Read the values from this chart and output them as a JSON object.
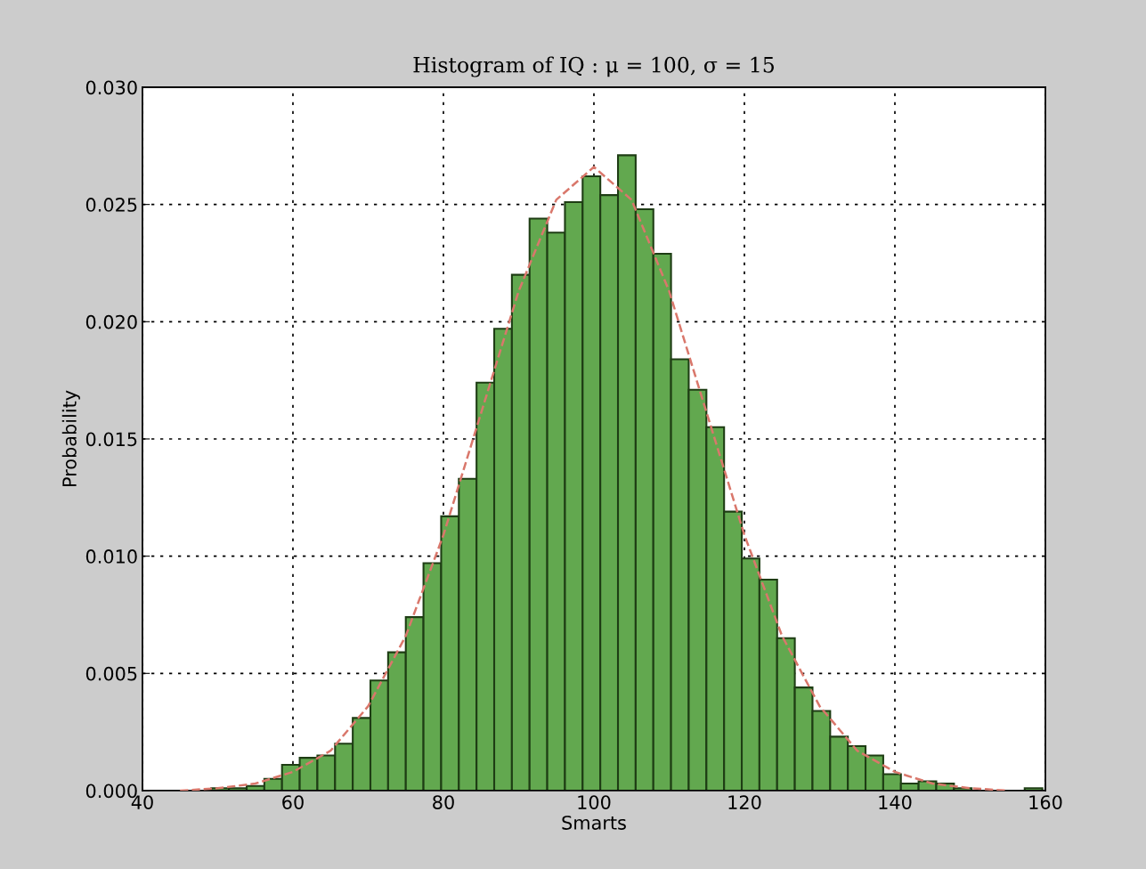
{
  "chart_data": {
    "type": "histogram",
    "title": "Histogram of IQ : μ = 100, σ = 15",
    "xlabel": "Smarts",
    "ylabel": "Probability",
    "series": [
      {
        "color": "#62a84f",
        "bins": [
          42.1,
          44.45,
          46.8,
          49.15,
          51.5,
          53.85,
          56.2,
          58.55,
          60.9,
          63.25,
          65.6,
          67.95,
          70.3,
          72.65,
          75.0,
          77.35,
          79.7,
          82.05,
          84.4,
          86.75,
          89.1,
          91.45,
          93.8,
          96.15,
          98.5,
          100.85,
          103.2,
          105.55,
          107.9,
          110.25,
          112.6,
          114.95,
          117.3,
          119.65,
          122.0,
          124.35,
          126.7,
          129.05,
          131.4,
          133.75,
          136.1,
          138.45,
          140.8,
          143.15,
          145.5,
          147.85,
          150.2,
          152.55,
          154.9,
          157.25,
          159.6
        ],
        "values": [
          0,
          0,
          0,
          0.0001,
          0.0001,
          0.0002,
          0.0005,
          0.0011,
          0.0014,
          0.0015,
          0.002,
          0.0031,
          0.0047,
          0.0059,
          0.0074,
          0.0097,
          0.0117,
          0.0133,
          0.0174,
          0.0197,
          0.022,
          0.0244,
          0.0238,
          0.0251,
          0.0262,
          0.0254,
          0.0271,
          0.0248,
          0.0229,
          0.0184,
          0.0171,
          0.0155,
          0.0119,
          0.0099,
          0.009,
          0.0065,
          0.0044,
          0.0034,
          0.0023,
          0.0019,
          0.0015,
          0.0007,
          0.0003,
          0.0004,
          0.0003,
          0.0001,
          0,
          0,
          0,
          0.0001
        ]
      },
      {
        "type": "line",
        "color": "#d9776b",
        "line_style": "dashed",
        "x": [
          45,
          50,
          55,
          60,
          65,
          70,
          75,
          80,
          85,
          90,
          95,
          100,
          105,
          110,
          115,
          120,
          125,
          130,
          135,
          140,
          145,
          150,
          155
        ],
        "values": [
          0,
          0.0001,
          0.0003,
          0.0008,
          0.0017,
          0.0036,
          0.0066,
          0.0109,
          0.0161,
          0.0213,
          0.0252,
          0.0266,
          0.0252,
          0.0213,
          0.0161,
          0.0109,
          0.0066,
          0.0036,
          0.0017,
          0.0008,
          0.0003,
          0.0001,
          0
        ]
      }
    ],
    "xlim": [
      40,
      160
    ],
    "xticks": [
      40,
      60,
      80,
      100,
      120,
      140,
      160
    ],
    "ylim": [
      0,
      0.03
    ],
    "yticks": [
      {
        "value": 0,
        "label": "0.000"
      },
      {
        "value": 0.005,
        "label": "0.005"
      },
      {
        "value": 0.01,
        "label": "0.010"
      },
      {
        "value": 0.015,
        "label": "0.015"
      },
      {
        "value": 0.02,
        "label": "0.020"
      },
      {
        "value": 0.025,
        "label": "0.025"
      },
      {
        "value": 0.03,
        "label": "0.030"
      }
    ],
    "grid": true
  }
}
